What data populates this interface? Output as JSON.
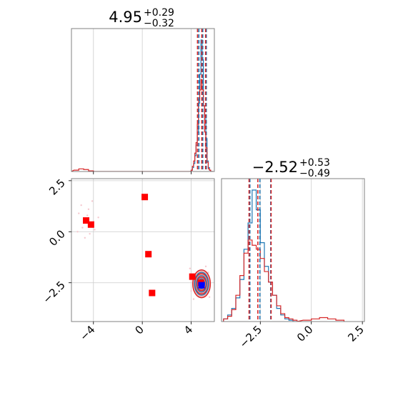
{
  "chart_data": {
    "type": "corner",
    "parameters": [
      {
        "title": {
          "value": "4.95",
          "upper": "+0.29",
          "lower": "−0.32"
        },
        "lim": [
          -5.8,
          5.9
        ],
        "ticks": [
          -4,
          0,
          4
        ],
        "tick_labels": [
          "−4",
          "0",
          "4"
        ],
        "quantile_lines": {
          "blue": [
            4.63,
            4.95,
            5.24
          ],
          "red": [
            4.52,
            4.87,
            5.18
          ]
        }
      },
      {
        "title": {
          "value": "−2.52",
          "upper": "+0.53",
          "lower": "−0.49"
        },
        "lim": [
          -4.4,
          2.6
        ],
        "ticks": [
          -2.5,
          0.0,
          2.5
        ],
        "tick_labels": [
          "−2.5",
          "0.0",
          "2.5"
        ],
        "quantile_lines": {
          "blue": [
            -3.01,
            -2.52,
            -1.99
          ],
          "red": [
            -3.05,
            -2.62,
            -1.97
          ]
        }
      }
    ],
    "marginal_hist_1": {
      "bins": [
        3.9,
        4.0,
        4.1,
        4.2,
        4.3,
        4.4,
        4.5,
        4.6,
        4.7,
        4.8,
        4.9,
        5.0,
        5.1,
        5.2,
        5.3,
        5.4,
        5.5,
        5.6,
        5.7
      ],
      "blue": [
        0.0,
        0.01,
        0.03,
        0.06,
        0.12,
        0.2,
        0.3,
        0.52,
        0.74,
        1.0,
        0.85,
        0.5,
        0.42,
        0.25,
        0.08,
        0.03,
        0.01,
        0.0,
        0.0
      ],
      "red": [
        0.0,
        0.01,
        0.04,
        0.08,
        0.14,
        0.22,
        0.36,
        0.55,
        0.62,
        0.7,
        0.62,
        0.5,
        0.3,
        0.18,
        0.07,
        0.02,
        0.01,
        0.0,
        0.0
      ],
      "red_outlier": [
        {
          "x": -5.4,
          "h": 0.01
        },
        {
          "x": -5.0,
          "h": 0.02
        },
        {
          "x": -4.6,
          "h": 0.015
        },
        {
          "x": -4.2,
          "h": 0.005
        }
      ]
    },
    "marginal_hist_2": {
      "bins": [
        -4.3,
        -4.1,
        -3.9,
        -3.7,
        -3.5,
        -3.3,
        -3.1,
        -2.9,
        -2.7,
        -2.5,
        -2.3,
        -2.1,
        -1.9,
        -1.7,
        -1.5,
        -1.3,
        -1.1,
        -0.9
      ],
      "blue": [
        0.02,
        0.05,
        0.1,
        0.18,
        0.32,
        0.55,
        0.75,
        1.0,
        0.85,
        0.6,
        0.42,
        0.3,
        0.2,
        0.1,
        0.05,
        0.02,
        0.01,
        0.0
      ],
      "red": [
        0.02,
        0.04,
        0.09,
        0.2,
        0.35,
        0.52,
        0.62,
        0.58,
        0.55,
        0.48,
        0.38,
        0.3,
        0.2,
        0.12,
        0.06,
        0.03,
        0.02,
        0.01
      ],
      "red_outlier": [
        {
          "x": -0.2,
          "h": 0.01
        },
        {
          "x": 0.2,
          "h": 0.02
        },
        {
          "x": 0.6,
          "h": 0.03
        },
        {
          "x": 1.0,
          "h": 0.02
        },
        {
          "x": 1.4,
          "h": 0.01
        }
      ]
    },
    "joint": {
      "red_squares": [
        {
          "x": 0.2,
          "y": 1.7
        },
        {
          "x": -4.6,
          "y": 0.55
        },
        {
          "x": -4.2,
          "y": 0.35
        },
        {
          "x": 0.5,
          "y": -1.1
        },
        {
          "x": 0.8,
          "y": -3.0
        },
        {
          "x": 4.1,
          "y": -2.2
        },
        {
          "x": 4.8,
          "y": -2.5
        }
      ],
      "blue_square": {
        "x": 4.85,
        "y": -2.62
      },
      "contour_center": {
        "x": 4.85,
        "y": -2.55
      },
      "red_contours": [
        {
          "rx": 0.72,
          "ry": 0.68
        },
        {
          "rx": 0.55,
          "ry": 0.5
        },
        {
          "rx": 0.38,
          "ry": 0.33
        },
        {
          "rx": 0.2,
          "ry": 0.18
        }
      ],
      "blue_contours": [
        {
          "rx": 0.58,
          "ry": 0.56
        },
        {
          "rx": 0.42,
          "ry": 0.4
        },
        {
          "rx": 0.26,
          "ry": 0.24
        },
        {
          "rx": 0.12,
          "ry": 0.11
        }
      ],
      "scatter_points": [
        {
          "x": -5.2,
          "y": 0.9
        },
        {
          "x": -4.9,
          "y": 0.2
        },
        {
          "x": -4.5,
          "y": 0.8
        },
        {
          "x": -4.3,
          "y": -0.1
        },
        {
          "x": -4.0,
          "y": 0.5
        },
        {
          "x": -5.0,
          "y": 1.3
        },
        {
          "x": -4.7,
          "y": -0.3
        },
        {
          "x": -3.9,
          "y": 0.1
        },
        {
          "x": -4.4,
          "y": 1.1
        },
        {
          "x": -3.6,
          "y": 0.7
        },
        {
          "x": -5.3,
          "y": 0.0
        },
        {
          "x": -4.1,
          "y": 1.5
        },
        {
          "x": 3.9,
          "y": -1.8
        },
        {
          "x": 4.2,
          "y": -3.3
        },
        {
          "x": 5.4,
          "y": -2.0
        },
        {
          "x": 5.5,
          "y": -3.2
        },
        {
          "x": 4.0,
          "y": -2.9
        },
        {
          "x": 5.2,
          "y": -1.7
        }
      ],
      "colors": {
        "red": "#d62728",
        "red_fill": "#f2b8b8",
        "blue": "#1f77b4",
        "blue_marker": "#0000ff",
        "scatter": "#f5c8cf"
      }
    },
    "grid": true
  }
}
